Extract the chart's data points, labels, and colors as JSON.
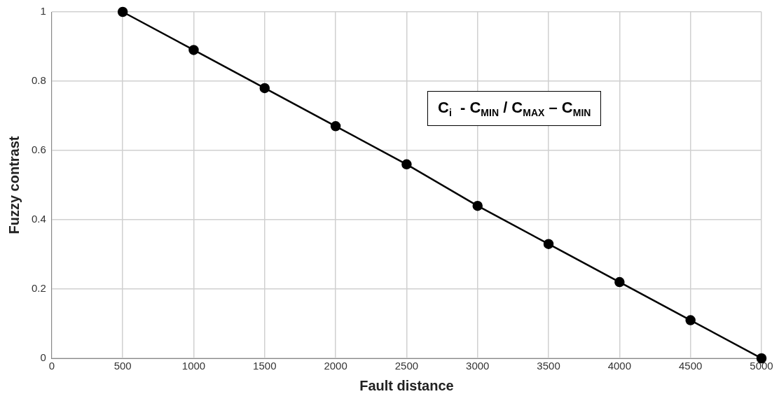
{
  "chart_data": {
    "type": "line",
    "xlabel": "Fault distance",
    "ylabel": "Fuzzy contrast",
    "x": [
      500,
      1000,
      1500,
      2000,
      2500,
      3000,
      3500,
      4000,
      4500,
      5000
    ],
    "series": [
      {
        "color": "#000000",
        "values": [
          1,
          0.89,
          0.78,
          0.67,
          0.56,
          0.44,
          0.33,
          0.22,
          0.11,
          0
        ]
      }
    ],
    "xlim": [
      0,
      5000
    ],
    "xticks": [
      0,
      500,
      1000,
      1500,
      2000,
      2500,
      3000,
      3500,
      4000,
      4500,
      5000
    ],
    "ylim": [
      0,
      1
    ],
    "yticks": [
      0,
      0.2,
      0.4,
      0.6,
      0.8,
      1
    ],
    "grid": true,
    "legend": false,
    "marker": "circle",
    "line_style": "solid",
    "annotations": [
      "C$_{i}$  - C$_{MIN}$ / C$_{MAX}$ – C$_{MIN}$"
    ]
  }
}
